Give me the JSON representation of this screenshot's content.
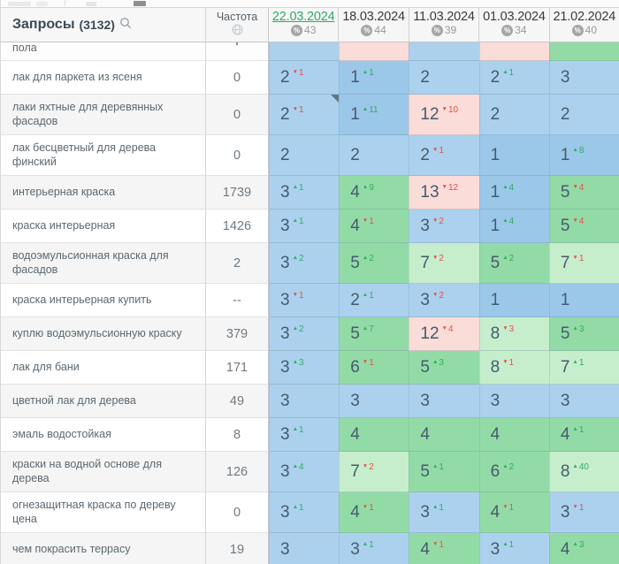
{
  "colors": {
    "accent_green": "#2bab66",
    "change_up": "#2fad62",
    "change_down": "#e05348",
    "cell_top3_blue": "#abd1ee",
    "cell_pos1_blue": "#9bc7e9",
    "cell_top10_green": "#92dba7",
    "cell_low10_green": "#c6eecd",
    "cell_over10_pink": "#fadcd8"
  },
  "header": {
    "queries_label": "Запросы",
    "queries_count": "(3132)",
    "search_icon": "magnifier-icon",
    "frequency_label": "Частота",
    "frequency_icon": "globe-icon",
    "dates": [
      {
        "label": "22.03.2024",
        "percent": "43",
        "selected": true
      },
      {
        "label": "18.03.2024",
        "percent": "44",
        "selected": false
      },
      {
        "label": "11.03.2024",
        "percent": "39",
        "selected": false
      },
      {
        "label": "01.03.2024",
        "percent": "34",
        "selected": false
      },
      {
        "label": "21.02.2024",
        "percent": "40",
        "selected": false
      }
    ]
  },
  "partial_row": {
    "keyword": "пола",
    "cells": [
      {
        "tone": "blue"
      },
      {
        "tone": "pink"
      },
      {
        "tone": "blue"
      },
      {
        "tone": "pink"
      },
      {
        "tone": "green"
      }
    ]
  },
  "rows": [
    {
      "keyword": "лак для паркета из ясеня",
      "frequency": "0",
      "tall": false,
      "cells": [
        {
          "pos": "2",
          "dir": "down",
          "chg": "1",
          "tone": "blue"
        },
        {
          "pos": "1",
          "dir": "up",
          "chg": "1",
          "tone": "blue1"
        },
        {
          "pos": "2",
          "dir": null,
          "chg": "",
          "tone": "blue"
        },
        {
          "pos": "2",
          "dir": "up",
          "chg": "1",
          "tone": "blue"
        },
        {
          "pos": "3",
          "dir": null,
          "chg": "",
          "tone": "blue"
        }
      ]
    },
    {
      "keyword": "лаки яхтные для деревянных фасадов",
      "frequency": "0",
      "tall": true,
      "cells": [
        {
          "pos": "2",
          "dir": "down",
          "chg": "1",
          "tone": "blue",
          "note": true
        },
        {
          "pos": "1",
          "dir": "up",
          "chg": "11",
          "tone": "blue1"
        },
        {
          "pos": "12",
          "dir": "down",
          "chg": "10",
          "tone": "pink"
        },
        {
          "pos": "2",
          "dir": null,
          "chg": "",
          "tone": "blue"
        },
        {
          "pos": "2",
          "dir": null,
          "chg": "",
          "tone": "blue"
        }
      ]
    },
    {
      "keyword": "лак бесцветный для дерева финский",
      "frequency": "0",
      "tall": true,
      "cells": [
        {
          "pos": "2",
          "dir": null,
          "chg": "",
          "tone": "blue"
        },
        {
          "pos": "2",
          "dir": null,
          "chg": "",
          "tone": "blue"
        },
        {
          "pos": "2",
          "dir": "down",
          "chg": "1",
          "tone": "blue"
        },
        {
          "pos": "1",
          "dir": null,
          "chg": "",
          "tone": "blue1"
        },
        {
          "pos": "1",
          "dir": "up",
          "chg": "8",
          "tone": "blue1"
        }
      ]
    },
    {
      "keyword": "интерьерная краска",
      "frequency": "1739",
      "tall": false,
      "cells": [
        {
          "pos": "3",
          "dir": "up",
          "chg": "1",
          "tone": "blue"
        },
        {
          "pos": "4",
          "dir": "up",
          "chg": "9",
          "tone": "green"
        },
        {
          "pos": "13",
          "dir": "down",
          "chg": "12",
          "tone": "pink"
        },
        {
          "pos": "1",
          "dir": "up",
          "chg": "4",
          "tone": "blue1"
        },
        {
          "pos": "5",
          "dir": "down",
          "chg": "4",
          "tone": "green"
        }
      ]
    },
    {
      "keyword": "краска интерьерная",
      "frequency": "1426",
      "tall": false,
      "cells": [
        {
          "pos": "3",
          "dir": "up",
          "chg": "1",
          "tone": "blue"
        },
        {
          "pos": "4",
          "dir": "down",
          "chg": "1",
          "tone": "green"
        },
        {
          "pos": "3",
          "dir": "down",
          "chg": "2",
          "tone": "blue"
        },
        {
          "pos": "1",
          "dir": "up",
          "chg": "4",
          "tone": "blue1"
        },
        {
          "pos": "5",
          "dir": "down",
          "chg": "4",
          "tone": "green"
        }
      ]
    },
    {
      "keyword": "водоэмульсионная краска для фасадов",
      "frequency": "2",
      "tall": true,
      "cells": [
        {
          "pos": "3",
          "dir": "up",
          "chg": "2",
          "tone": "blue"
        },
        {
          "pos": "5",
          "dir": "up",
          "chg": "2",
          "tone": "green"
        },
        {
          "pos": "7",
          "dir": "down",
          "chg": "2",
          "tone": "green2"
        },
        {
          "pos": "5",
          "dir": "up",
          "chg": "2",
          "tone": "green"
        },
        {
          "pos": "7",
          "dir": "down",
          "chg": "1",
          "tone": "green2"
        }
      ]
    },
    {
      "keyword": "краска интерьерная купить",
      "frequency": "--",
      "tall": false,
      "cells": [
        {
          "pos": "3",
          "dir": "down",
          "chg": "1",
          "tone": "blue"
        },
        {
          "pos": "2",
          "dir": "up",
          "chg": "1",
          "tone": "blue"
        },
        {
          "pos": "3",
          "dir": "down",
          "chg": "2",
          "tone": "blue"
        },
        {
          "pos": "1",
          "dir": null,
          "chg": "",
          "tone": "blue1"
        },
        {
          "pos": "1",
          "dir": null,
          "chg": "",
          "tone": "blue1"
        }
      ]
    },
    {
      "keyword": "куплю водоэмульсионную краску",
      "frequency": "379",
      "tall": false,
      "cells": [
        {
          "pos": "3",
          "dir": "up",
          "chg": "2",
          "tone": "blue"
        },
        {
          "pos": "5",
          "dir": "up",
          "chg": "7",
          "tone": "green"
        },
        {
          "pos": "12",
          "dir": "down",
          "chg": "4",
          "tone": "pink"
        },
        {
          "pos": "8",
          "dir": "down",
          "chg": "3",
          "tone": "green2"
        },
        {
          "pos": "5",
          "dir": "up",
          "chg": "3",
          "tone": "green"
        }
      ]
    },
    {
      "keyword": "лак для бани",
      "frequency": "171",
      "tall": false,
      "cells": [
        {
          "pos": "3",
          "dir": "up",
          "chg": "3",
          "tone": "blue"
        },
        {
          "pos": "6",
          "dir": "down",
          "chg": "1",
          "tone": "green"
        },
        {
          "pos": "5",
          "dir": "up",
          "chg": "3",
          "tone": "green"
        },
        {
          "pos": "8",
          "dir": "down",
          "chg": "1",
          "tone": "green2"
        },
        {
          "pos": "7",
          "dir": "up",
          "chg": "1",
          "tone": "green2"
        }
      ]
    },
    {
      "keyword": "цветной лак для дерева",
      "frequency": "49",
      "tall": false,
      "cells": [
        {
          "pos": "3",
          "dir": null,
          "chg": "",
          "tone": "blue"
        },
        {
          "pos": "3",
          "dir": null,
          "chg": "",
          "tone": "blue"
        },
        {
          "pos": "3",
          "dir": null,
          "chg": "",
          "tone": "blue"
        },
        {
          "pos": "3",
          "dir": null,
          "chg": "",
          "tone": "blue"
        },
        {
          "pos": "3",
          "dir": null,
          "chg": "",
          "tone": "blue"
        }
      ]
    },
    {
      "keyword": "эмаль водостойкая",
      "frequency": "8",
      "tall": false,
      "cells": [
        {
          "pos": "3",
          "dir": "up",
          "chg": "1",
          "tone": "blue"
        },
        {
          "pos": "4",
          "dir": null,
          "chg": "",
          "tone": "green"
        },
        {
          "pos": "4",
          "dir": null,
          "chg": "",
          "tone": "green"
        },
        {
          "pos": "4",
          "dir": null,
          "chg": "",
          "tone": "green"
        },
        {
          "pos": "4",
          "dir": "up",
          "chg": "1",
          "tone": "green"
        }
      ]
    },
    {
      "keyword": "краски на водной основе для дерева",
      "frequency": "126",
      "tall": true,
      "cells": [
        {
          "pos": "3",
          "dir": "up",
          "chg": "4",
          "tone": "blue"
        },
        {
          "pos": "7",
          "dir": "down",
          "chg": "2",
          "tone": "green2"
        },
        {
          "pos": "5",
          "dir": "up",
          "chg": "1",
          "tone": "green"
        },
        {
          "pos": "6",
          "dir": "up",
          "chg": "2",
          "tone": "green"
        },
        {
          "pos": "8",
          "dir": "up",
          "chg": "40",
          "tone": "green2"
        }
      ]
    },
    {
      "keyword": "огнезащитная краска по дереву цена",
      "frequency": "0",
      "tall": true,
      "cells": [
        {
          "pos": "3",
          "dir": "up",
          "chg": "1",
          "tone": "blue"
        },
        {
          "pos": "4",
          "dir": "down",
          "chg": "1",
          "tone": "green"
        },
        {
          "pos": "3",
          "dir": "up",
          "chg": "1",
          "tone": "blue"
        },
        {
          "pos": "4",
          "dir": "down",
          "chg": "1",
          "tone": "green"
        },
        {
          "pos": "3",
          "dir": "down",
          "chg": "1",
          "tone": "blue"
        }
      ]
    },
    {
      "keyword": "чем покрасить террасу",
      "frequency": "19",
      "tall": false,
      "cells": [
        {
          "pos": "3",
          "dir": null,
          "chg": "",
          "tone": "blue"
        },
        {
          "pos": "3",
          "dir": "up",
          "chg": "1",
          "tone": "blue"
        },
        {
          "pos": "4",
          "dir": "down",
          "chg": "1",
          "tone": "green"
        },
        {
          "pos": "3",
          "dir": "up",
          "chg": "1",
          "tone": "blue"
        },
        {
          "pos": "4",
          "dir": "up",
          "chg": "3",
          "tone": "green"
        }
      ]
    }
  ]
}
